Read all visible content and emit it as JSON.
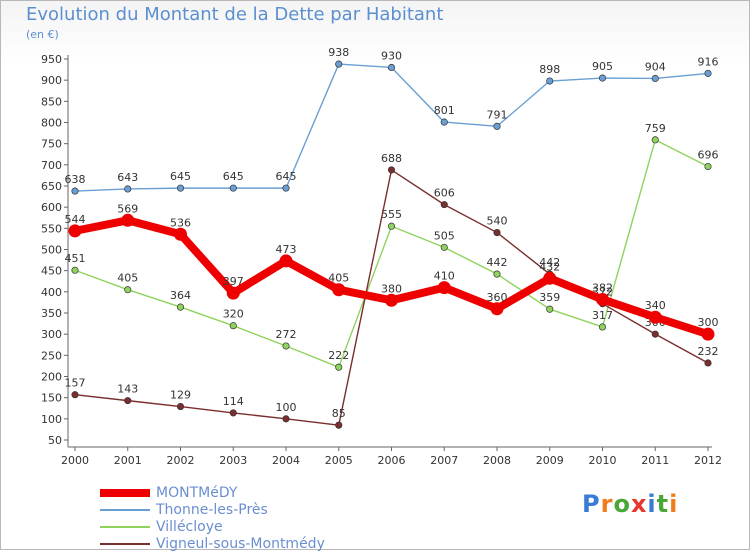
{
  "title": "Evolution du Montant de la Dette par Habitant",
  "subtitle": "(en €)",
  "logo": "Proxiti",
  "chart_data": {
    "type": "line",
    "title": "Evolution du Montant de la Dette par Habitant",
    "subtitle": "(en €)",
    "x": [
      "2000",
      "2001",
      "2002",
      "2003",
      "2004",
      "2005",
      "2006",
      "2007",
      "2008",
      "2009",
      "2010",
      "2011",
      "2012"
    ],
    "ylim": [
      50,
      950
    ],
    "yticks": [
      50,
      100,
      150,
      200,
      250,
      300,
      350,
      400,
      450,
      500,
      550,
      600,
      650,
      700,
      750,
      800,
      850,
      900,
      950
    ],
    "grid": false,
    "legend_position": "bottom-left",
    "series": [
      {
        "name": "Thonne-les-Près",
        "color": "#6a9fd4",
        "values": [
          638,
          643,
          645,
          645,
          645,
          938,
          930,
          801,
          791,
          898,
          905,
          904,
          916
        ],
        "labels": [
          "638",
          "643",
          "645",
          "645",
          "645",
          "938",
          "930",
          "801",
          "791",
          "898",
          "905",
          "904",
          "916"
        ]
      },
      {
        "name": "Villécloye",
        "color": "#8fd35e",
        "values": [
          451,
          405,
          364,
          320,
          272,
          222,
          555,
          505,
          442,
          359,
          317,
          759,
          696
        ],
        "labels": [
          "451",
          "405",
          "364",
          "320",
          "272",
          "222",
          "555",
          "505",
          "442",
          "359",
          "317",
          "759",
          "696"
        ]
      },
      {
        "name": "Vigneul-sous-Montmédy",
        "color": "#7a2e2e",
        "values": [
          157,
          143,
          129,
          114,
          100,
          85,
          688,
          606,
          540,
          442,
          372,
          300,
          232
        ],
        "labels": [
          "157",
          "143",
          "129",
          "114",
          "100",
          "85",
          "688",
          "606",
          "540",
          "442",
          "372",
          "300",
          "232"
        ]
      },
      {
        "name": "MONTMéDY",
        "color": "#ee0000",
        "values": [
          544,
          569,
          536,
          397,
          473,
          405,
          380,
          410,
          360,
          432,
          382,
          340,
          300
        ],
        "labels": [
          "544",
          "569",
          "536",
          "397",
          "473",
          "405",
          "380",
          "410",
          "360",
          "432",
          "382",
          "340",
          "300"
        ]
      }
    ]
  },
  "legend": [
    {
      "label": "MONTMéDY",
      "color": "#ee0000"
    },
    {
      "label": "Thonne-les-Près",
      "color": "#6a9fd4"
    },
    {
      "label": "Villécloye",
      "color": "#8fd35e"
    },
    {
      "label": "Vigneul-sous-Montmédy",
      "color": "#7a2e2e"
    }
  ]
}
